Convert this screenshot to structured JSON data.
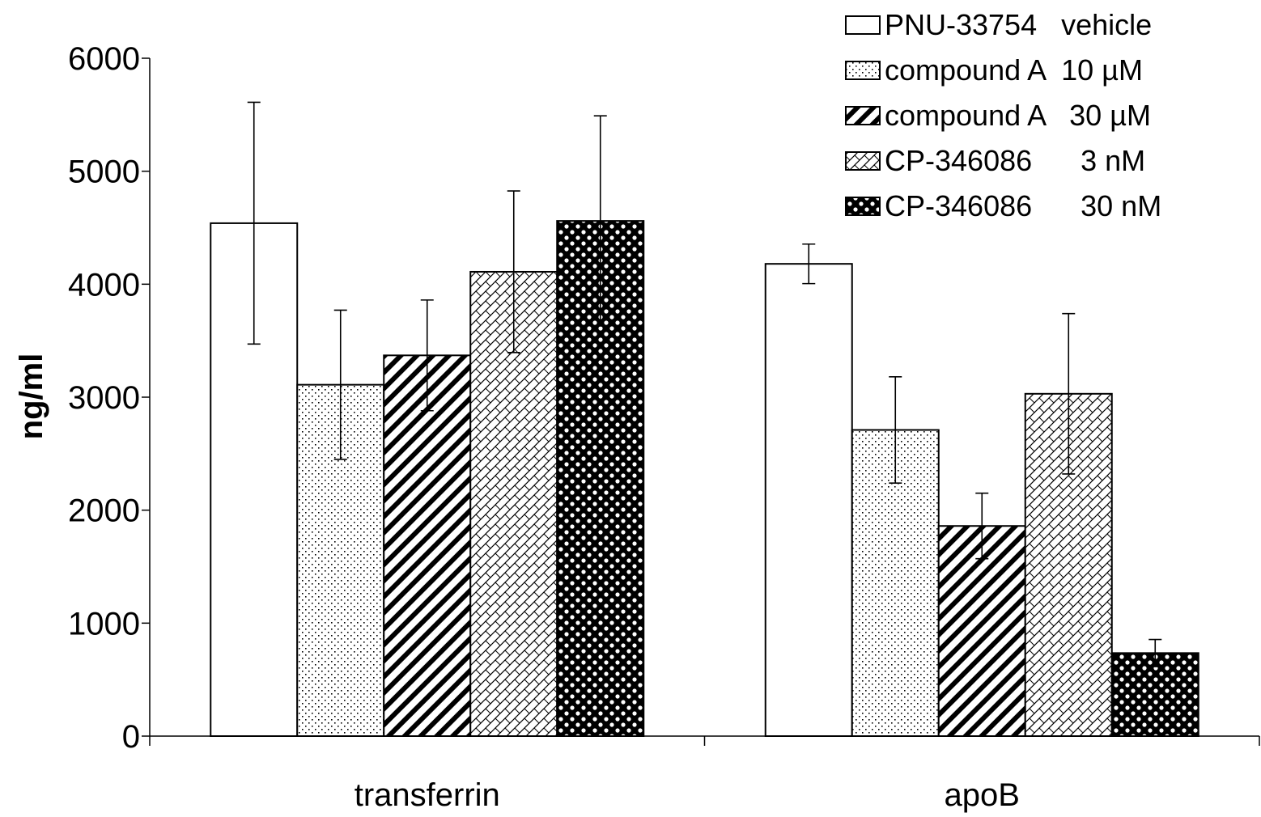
{
  "chart_data": {
    "type": "bar",
    "title": "",
    "xlabel": "",
    "ylabel": "ng/ml",
    "ylim": [
      0,
      6000
    ],
    "yticks": [
      "0",
      "1000",
      "2000",
      "3000",
      "4000",
      "5000",
      "6000"
    ],
    "categories": [
      "transferrin",
      "apoB"
    ],
    "grid": false,
    "legend_position": "top-right",
    "series": [
      {
        "name": "PNU-33754",
        "legend_label": "PNU-33754   vehicle",
        "pattern": "white",
        "values": [
          4540,
          4180
        ],
        "errors": [
          1070,
          175
        ]
      },
      {
        "name": "compound A 10 µM",
        "legend_label": "compound A  10 µM",
        "pattern": "dots",
        "values": [
          3110,
          2710
        ],
        "errors": [
          660,
          470
        ]
      },
      {
        "name": "compound A 30 µM",
        "legend_label": "compound A   30 µM",
        "pattern": "diagonal",
        "values": [
          3370,
          1860
        ],
        "errors": [
          490,
          290
        ]
      },
      {
        "name": "CP-346086 3 nM",
        "legend_label": "CP-346086      3 nM",
        "pattern": "crosshatch",
        "values": [
          4110,
          3030
        ],
        "errors": [
          715,
          710
        ]
      },
      {
        "name": "CP-346086 30 nM",
        "legend_label": "CP-346086      30 nM",
        "pattern": "checker",
        "values": [
          4560,
          735
        ],
        "errors": [
          930,
          120
        ]
      }
    ]
  }
}
